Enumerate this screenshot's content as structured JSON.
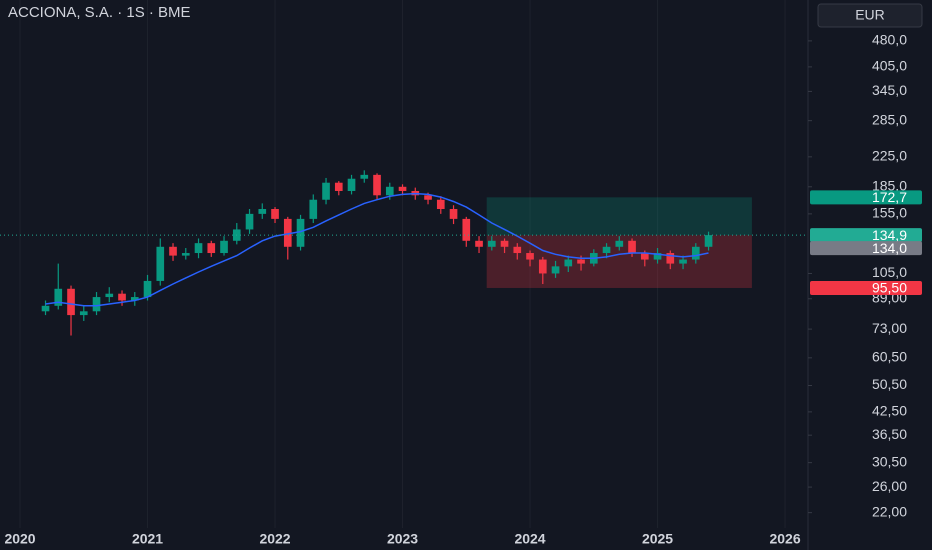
{
  "chart_data": {
    "type": "candlestick",
    "title": "ACCIONA, S.A. · 1S · BME",
    "currency": "EUR",
    "log_scale": true,
    "grid": true,
    "up_color": "#089981",
    "down_color": "#f23645",
    "ma_color": "#2962ff",
    "x": [
      2020.2,
      2020.3,
      2020.4,
      2020.5,
      2020.6,
      2020.7,
      2020.8,
      2020.9,
      2021.0,
      2021.1,
      2021.2,
      2021.3,
      2021.4,
      2021.5,
      2021.6,
      2021.7,
      2021.8,
      2021.9,
      2022.0,
      2022.1,
      2022.2,
      2022.3,
      2022.4,
      2022.5,
      2022.6,
      2022.7,
      2022.8,
      2022.9,
      2023.0,
      2023.1,
      2023.2,
      2023.3,
      2023.4,
      2023.5,
      2023.6,
      2023.7,
      2023.8,
      2023.9,
      2024.0,
      2024.1,
      2024.2,
      2024.3,
      2024.4,
      2024.5,
      2024.6,
      2024.7,
      2024.8,
      2024.9,
      2025.0,
      2025.1,
      2025.2,
      2025.3,
      2025.4
    ],
    "open": [
      82,
      85,
      95,
      80,
      82,
      90,
      92,
      88,
      90,
      100,
      125,
      118,
      120,
      128,
      120,
      130,
      140,
      155,
      160,
      150,
      125,
      150,
      170,
      190,
      180,
      195,
      200,
      175,
      185,
      180,
      175,
      170,
      160,
      150,
      130,
      125,
      130,
      125,
      120,
      115,
      105,
      110,
      115,
      112,
      120,
      125,
      130,
      120,
      115,
      120,
      112,
      115,
      125
    ],
    "high": [
      88,
      112,
      97,
      85,
      93,
      96,
      94,
      93,
      104,
      132,
      128,
      124,
      132,
      130,
      134,
      146,
      160,
      166,
      162,
      152,
      154,
      176,
      196,
      192,
      200,
      206,
      202,
      190,
      188,
      184,
      178,
      174,
      164,
      152,
      134,
      134,
      132,
      128,
      122,
      117,
      114,
      118,
      118,
      123,
      128,
      134,
      132,
      122,
      124,
      122,
      118,
      128,
      138
    ],
    "low": [
      80,
      83,
      70,
      77,
      80,
      87,
      85,
      85,
      88,
      97,
      114,
      115,
      116,
      117,
      118,
      127,
      136,
      150,
      146,
      115,
      122,
      146,
      165,
      175,
      176,
      190,
      170,
      170,
      175,
      170,
      165,
      155,
      145,
      125,
      120,
      122,
      120,
      115,
      110,
      98,
      102,
      106,
      107,
      110,
      116,
      122,
      117,
      110,
      112,
      108,
      108,
      112,
      122
    ],
    "close": [
      85,
      95,
      80,
      82,
      90,
      92,
      88,
      90,
      100,
      125,
      118,
      120,
      128,
      120,
      130,
      140,
      155,
      160,
      150,
      125,
      150,
      170,
      190,
      180,
      195,
      200,
      175,
      185,
      180,
      175,
      170,
      160,
      150,
      130,
      125,
      130,
      125,
      120,
      115,
      105,
      110,
      115,
      112,
      120,
      125,
      130,
      120,
      115,
      120,
      112,
      115,
      125,
      134.9
    ],
    "ma_values": [
      86,
      87,
      86,
      85,
      85,
      86,
      87,
      88,
      90,
      94,
      98,
      102,
      106,
      110,
      114,
      118,
      124,
      130,
      134,
      136,
      138,
      142,
      148,
      154,
      160,
      166,
      170,
      174,
      176,
      177,
      176,
      173,
      168,
      162,
      154,
      146,
      140,
      134,
      128,
      122,
      119,
      117,
      116,
      116,
      117,
      119,
      120,
      120,
      119,
      118,
      117,
      118,
      120
    ],
    "xlim": [
      2019.843,
      2026.18
    ],
    "xticks": [
      2020,
      2021,
      2022,
      2023,
      2024,
      2025,
      2026
    ],
    "ylim": [
      19.9,
      627
    ],
    "yticks": [
      {
        "value": 480,
        "label": "480,0"
      },
      {
        "value": 405,
        "label": "405,0"
      },
      {
        "value": 345,
        "label": "345,0"
      },
      {
        "value": 285,
        "label": "285,0"
      },
      {
        "value": 225,
        "label": "225,0"
      },
      {
        "value": 185,
        "label": "185,0"
      },
      {
        "value": 155,
        "label": "155,0"
      },
      {
        "value": 105,
        "label": "105,0"
      },
      {
        "value": 89,
        "label": "89,00"
      },
      {
        "value": 73,
        "label": "73,00"
      },
      {
        "value": 60.5,
        "label": "60,50"
      },
      {
        "value": 50.5,
        "label": "50,50"
      },
      {
        "value": 42.5,
        "label": "42,50"
      },
      {
        "value": 36.5,
        "label": "36,50"
      },
      {
        "value": 30.5,
        "label": "30,50"
      },
      {
        "value": 26,
        "label": "26,00"
      },
      {
        "value": 22,
        "label": "22,00"
      }
    ],
    "position": {
      "start": 2023.66,
      "end": 2025.74,
      "entry": 134.9,
      "target": 172.7,
      "stop": 95.5
    },
    "price_labels": [
      {
        "value": 172.7,
        "label": "172,7",
        "color": "#089981"
      },
      {
        "value": 134.9,
        "label": "134,9",
        "color": "#22ab94"
      },
      {
        "value": 134.0,
        "label": "134,0",
        "color": "#787b86"
      },
      {
        "value": 95.5,
        "label": "95,50",
        "color": "#f23645"
      }
    ]
  }
}
